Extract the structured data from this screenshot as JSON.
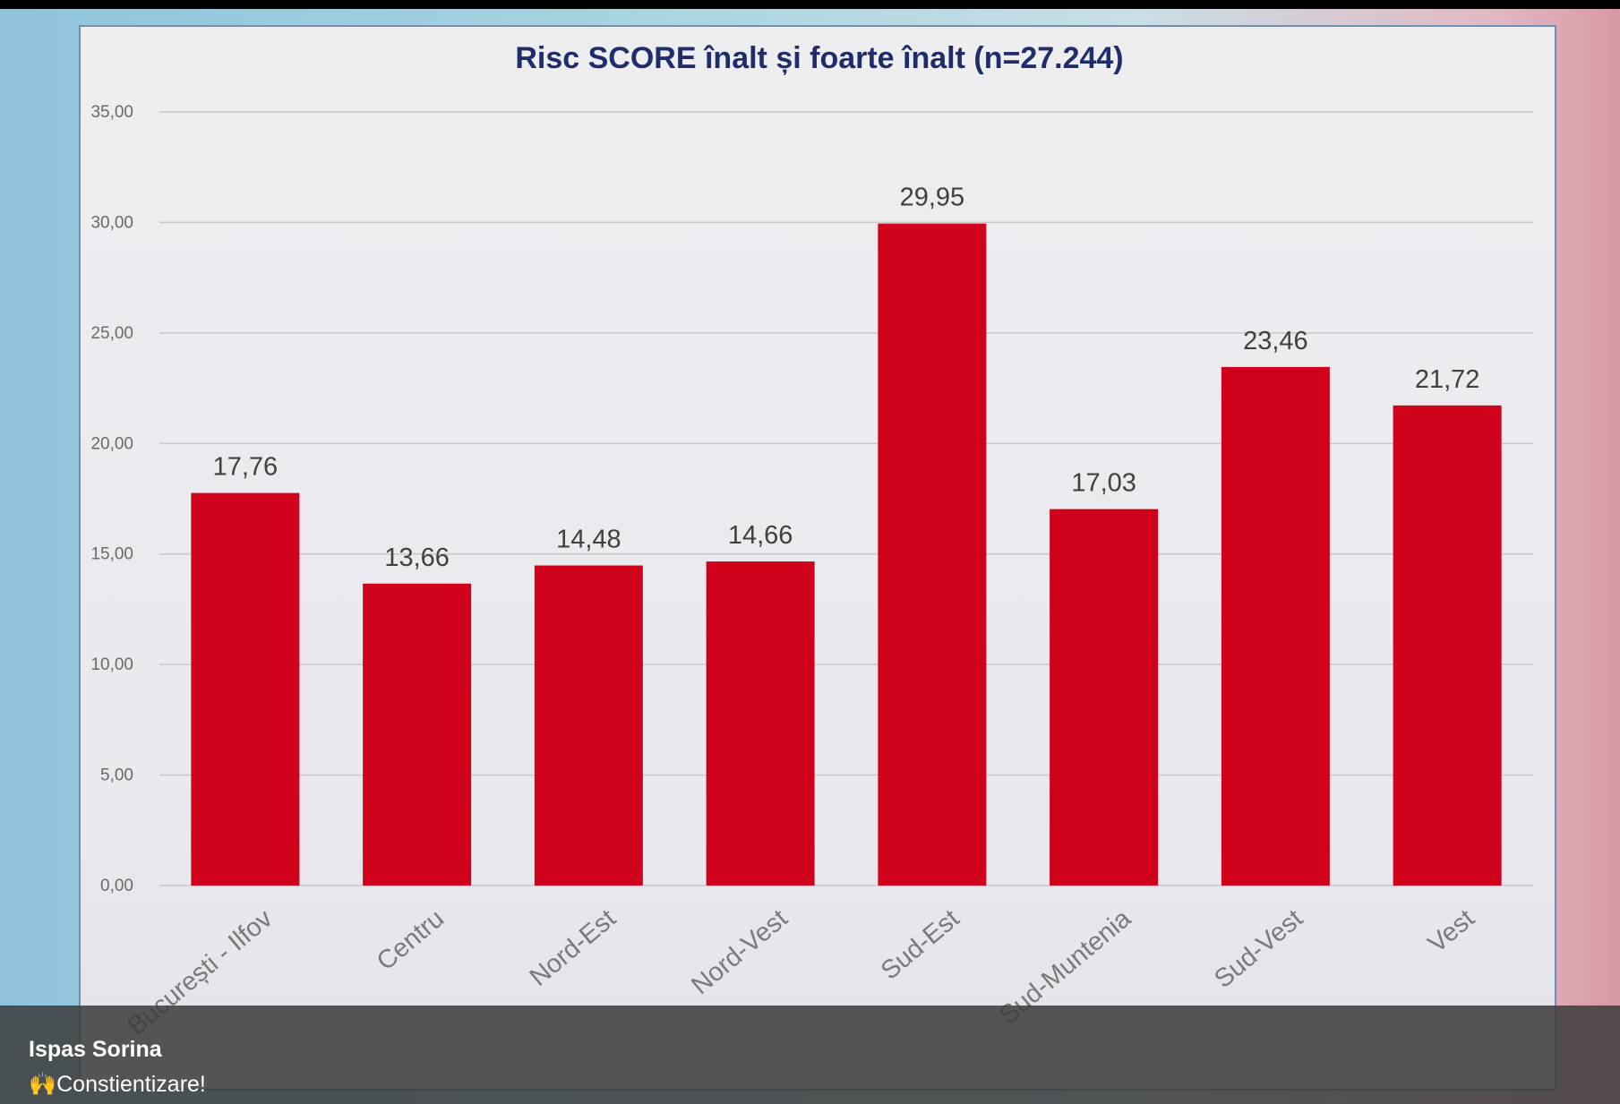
{
  "caption": {
    "author": "Ispas Sorina",
    "text": "🙌Constientizare!"
  },
  "colors": {
    "bar": "#d0011b",
    "title": "#1f2d6b"
  },
  "chart_data": {
    "type": "bar",
    "title": "Risc SCORE înalt și foarte înalt  (n=27.244)",
    "xlabel": "",
    "ylabel": "",
    "categories": [
      "București - Ilfov",
      "Centru",
      "Nord-Est",
      "Nord-Vest",
      "Sud-Est",
      "Sud-Muntenia",
      "Sud-Vest",
      "Vest"
    ],
    "values": [
      17.76,
      13.66,
      14.48,
      14.66,
      29.95,
      17.03,
      23.46,
      21.72
    ],
    "value_labels": [
      "17,76",
      "13,66",
      "14,48",
      "14,66",
      "29,95",
      "17,03",
      "23,46",
      "21,72"
    ],
    "ylim": [
      0,
      35
    ],
    "yticks": [
      0,
      5,
      10,
      15,
      20,
      25,
      30,
      35
    ],
    "ytick_labels": [
      "0,00",
      "5,00",
      "10,00",
      "15,00",
      "20,00",
      "25,00",
      "30,00",
      "35,00"
    ],
    "grid": true,
    "legend": "none"
  }
}
